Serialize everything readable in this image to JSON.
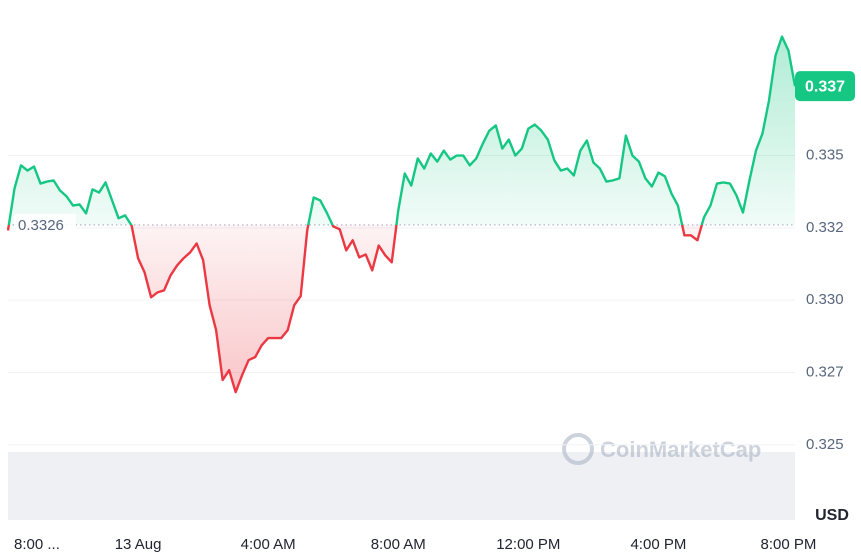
{
  "chart_data": {
    "type": "line",
    "x": [
      0,
      0.2,
      0.4,
      0.6,
      0.8,
      1,
      1.2,
      1.4,
      1.6,
      1.8,
      2,
      2.2,
      2.4,
      2.6,
      2.8,
      3,
      3.2,
      3.4,
      3.6,
      3.8,
      4,
      4.2,
      4.4,
      4.6,
      4.8,
      5,
      5.2,
      5.4,
      5.6,
      5.8,
      6,
      6.2,
      6.4,
      6.6,
      6.8,
      7,
      7.2,
      7.4,
      7.6,
      7.8,
      8,
      8.2,
      8.4,
      8.6,
      8.8,
      9,
      9.2,
      9.4,
      9.6,
      9.8,
      10,
      10.2,
      10.4,
      10.6,
      10.8,
      11,
      11.2,
      11.4,
      11.6,
      11.8,
      12,
      12.2,
      12.4,
      12.6,
      12.8,
      13,
      13.2,
      13.4,
      13.6,
      13.8,
      14,
      14.2,
      14.4,
      14.6,
      14.8,
      15,
      15.2,
      15.4,
      15.6,
      15.8,
      16,
      16.2,
      16.4,
      16.6,
      16.8,
      17,
      17.2,
      17.4,
      17.6,
      17.8,
      18,
      18.2,
      18.4,
      18.6,
      18.8,
      19,
      19.2,
      19.4,
      19.6,
      19.8,
      20,
      20.2,
      20.4,
      20.6,
      20.8,
      21,
      21.2,
      21.4,
      21.6,
      21.8,
      22,
      22.2,
      22.4,
      22.6,
      22.8,
      23,
      23.2,
      23.4,
      23.6,
      23.8,
      24,
      24.2
    ],
    "values": [
      0.33241,
      0.33386,
      0.33466,
      0.33448,
      0.33462,
      0.33403,
      0.3341,
      0.33414,
      0.33379,
      0.33359,
      0.33327,
      0.33331,
      0.333,
      0.33383,
      0.33372,
      0.33407,
      0.33345,
      0.33283,
      0.33293,
      0.33258,
      0.33145,
      0.33096,
      0.3301,
      0.33027,
      0.33034,
      0.33086,
      0.3312,
      0.33145,
      0.33165,
      0.33196,
      0.33138,
      0.32982,
      0.32896,
      0.32724,
      0.32758,
      0.32682,
      0.32741,
      0.32793,
      0.32803,
      0.32844,
      0.32869,
      0.32869,
      0.32869,
      0.32896,
      0.32982,
      0.33014,
      0.33241,
      0.33355,
      0.33345,
      0.33303,
      0.33255,
      0.33245,
      0.33172,
      0.33207,
      0.33148,
      0.33158,
      0.33103,
      0.33189,
      0.33155,
      0.33131,
      0.3331,
      0.33438,
      0.33396,
      0.3349,
      0.33455,
      0.33507,
      0.33479,
      0.33517,
      0.33486,
      0.335,
      0.335,
      0.33466,
      0.3349,
      0.33541,
      0.33586,
      0.33604,
      0.33524,
      0.33555,
      0.335,
      0.33524,
      0.33593,
      0.33607,
      0.33586,
      0.33555,
      0.33483,
      0.33448,
      0.33455,
      0.33431,
      0.33517,
      0.33552,
      0.33476,
      0.33455,
      0.3341,
      0.33414,
      0.33421,
      0.33569,
      0.335,
      0.33479,
      0.33421,
      0.33393,
      0.33441,
      0.33428,
      0.33369,
      0.33327,
      0.33224,
      0.33224,
      0.33207,
      0.33286,
      0.33327,
      0.33403,
      0.33407,
      0.33403,
      0.33362,
      0.33303,
      0.33414,
      0.33517,
      0.33576,
      0.3369,
      0.33845,
      0.33911,
      0.33862,
      0.3374
    ],
    "baseline": 0.3326,
    "current_price": {
      "value": 0.3374,
      "label": "0.337"
    },
    "color_up": "#16c784",
    "color_down": "#ea3943",
    "xlim": [
      0,
      24.2
    ],
    "xticks": [
      {
        "value": 0,
        "label": "8:00 ..."
      },
      {
        "value": 4,
        "label": "13 Aug"
      },
      {
        "value": 8,
        "label": "4:00 AM"
      },
      {
        "value": 12,
        "label": "8:00 AM"
      },
      {
        "value": 16,
        "label": "12:00 PM"
      },
      {
        "value": 20,
        "label": "4:00 PM"
      },
      {
        "value": 24,
        "label": "8:00 PM"
      }
    ],
    "ylim": [
      0.3224,
      0.3401
    ],
    "yticks": [
      0.325,
      {
        "value": 0.3275,
        "label": "0.327"
      },
      {
        "value": 0.33,
        "label": "0.330"
      },
      {
        "value": 0.3325,
        "label": "0.332"
      },
      0.335
    ],
    "grid": true,
    "currency": "USD",
    "watermark": "CoinMarketCap"
  }
}
